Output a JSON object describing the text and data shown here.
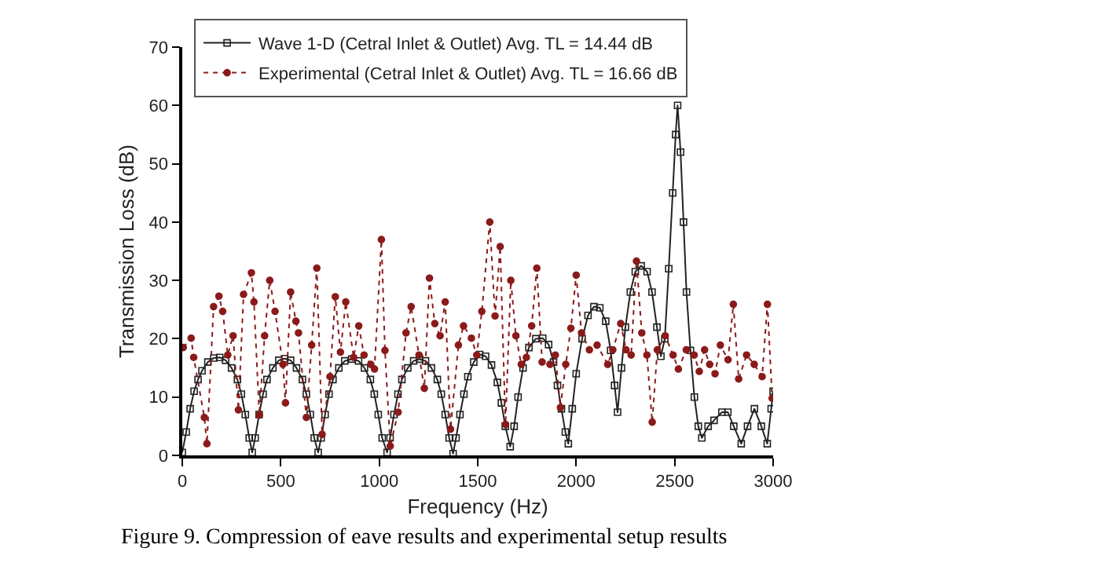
{
  "chart_data": {
    "type": "line",
    "xlabel": "Frequency (Hz)",
    "ylabel": "Transmission Loss (dB)",
    "xlim": [
      0,
      3000
    ],
    "xticks": [
      0,
      500,
      1000,
      1500,
      2000,
      2500,
      3000
    ],
    "ylim": [
      0,
      70
    ],
    "yticks": [
      0,
      10,
      20,
      30,
      40,
      50,
      60,
      70
    ],
    "grid": false,
    "legend": "top left",
    "annotations": [
      "Figure 9. Compression of eave results and experimental setup results"
    ],
    "series": [
      {
        "name": "Wave 1-D (Cetral Inlet & Outlet) Avg. TL = 14.44 dB",
        "color": "#222222",
        "marker": "square",
        "line_style": "solid",
        "x": [
          0,
          20,
          40,
          60,
          80,
          100,
          130,
          160,
          190,
          220,
          250,
          280,
          300,
          320,
          340,
          355,
          370,
          390,
          410,
          430,
          460,
          490,
          520,
          550,
          580,
          610,
          630,
          650,
          670,
          690,
          705,
          725,
          745,
          765,
          795,
          825,
          860,
          895,
          925,
          955,
          975,
          995,
          1015,
          1040,
          1055,
          1075,
          1095,
          1115,
          1145,
          1175,
          1205,
          1235,
          1265,
          1295,
          1315,
          1335,
          1355,
          1375,
          1390,
          1410,
          1430,
          1450,
          1480,
          1510,
          1540,
          1570,
          1600,
          1620,
          1640,
          1665,
          1685,
          1705,
          1730,
          1760,
          1795,
          1830,
          1860,
          1885,
          1905,
          1925,
          1945,
          1960,
          1980,
          2000,
          2030,
          2060,
          2090,
          2120,
          2150,
          2175,
          2195,
          2210,
          2230,
          2250,
          2275,
          2300,
          2330,
          2360,
          2385,
          2410,
          2430,
          2450,
          2470,
          2490,
          2505,
          2515,
          2530,
          2545,
          2560,
          2580,
          2600,
          2620,
          2638,
          2670,
          2700,
          2740,
          2770,
          2800,
          2838,
          2870,
          2905,
          2940,
          2970,
          2990,
          3000
        ],
        "values": [
          0.5,
          4,
          8,
          11,
          13,
          14.5,
          16,
          16.7,
          16.8,
          16.3,
          15,
          13,
          10.5,
          7,
          3,
          0.5,
          3,
          7,
          10.5,
          13,
          15,
          16.3,
          16.6,
          16.3,
          15,
          13,
          10.5,
          7,
          3,
          0.5,
          3,
          7,
          10.5,
          13,
          15,
          16.2,
          16.5,
          16.2,
          15,
          13,
          10.5,
          7,
          3,
          0.5,
          3,
          7,
          10.5,
          13,
          15,
          16.2,
          16.5,
          16.2,
          15,
          13,
          10.5,
          7,
          3,
          0.3,
          3,
          7,
          10.5,
          13.5,
          16,
          17.3,
          17,
          15.5,
          12.5,
          9,
          5,
          1.5,
          5,
          10,
          15,
          18.5,
          20,
          20.1,
          19,
          16,
          12,
          8,
          4,
          2,
          8,
          14,
          20,
          24,
          25.5,
          25.3,
          23,
          18,
          12,
          7.4,
          15,
          22,
          28,
          31.5,
          32.5,
          31.5,
          28,
          22,
          17,
          20,
          32,
          45,
          55,
          60,
          52,
          40,
          28,
          18,
          10,
          5,
          3,
          5,
          6,
          7.4,
          7.4,
          5,
          2,
          5,
          8,
          5,
          2,
          8,
          11
        ]
      },
      {
        "name": "Experimental (Cetral Inlet & Outlet) Avg. TL = 16.66 dB",
        "color": "#8b1a1a",
        "marker": "circle",
        "line_style": "dotted",
        "x": [
          5,
          45,
          58,
          112,
          125,
          159,
          186,
          205,
          231,
          258,
          285,
          311,
          351,
          364,
          391,
          418,
          444,
          471,
          511,
          524,
          550,
          577,
          590,
          630,
          657,
          683,
          710,
          750,
          777,
          803,
          830,
          870,
          896,
          923,
          957,
          976,
          1011,
          1029,
          1056,
          1096,
          1136,
          1162,
          1202,
          1229,
          1255,
          1282,
          1309,
          1335,
          1362,
          1402,
          1428,
          1468,
          1495,
          1521,
          1561,
          1588,
          1614,
          1641,
          1668,
          1694,
          1721,
          1747,
          1774,
          1800,
          1827,
          1867,
          1894,
          1920,
          1947,
          1973,
          2000,
          2027,
          2067,
          2106,
          2160,
          2186,
          2226,
          2253,
          2279,
          2306,
          2333,
          2359,
          2386,
          2412,
          2452,
          2492,
          2519,
          2559,
          2599,
          2625,
          2652,
          2678,
          2705,
          2732,
          2771,
          2798,
          2825,
          2865,
          2904,
          2944,
          2971,
          2995
        ],
        "values": [
          18.5,
          20.1,
          16.8,
          6.5,
          2,
          25.5,
          27.3,
          24.7,
          17.2,
          20.5,
          7.8,
          27.6,
          31.3,
          26.3,
          6.9,
          20.5,
          30,
          24.7,
          15.6,
          9,
          28,
          23,
          21,
          6.5,
          18.9,
          32.1,
          3.6,
          13.5,
          27.2,
          17.7,
          26.3,
          16.8,
          22.2,
          17.2,
          15.6,
          14.8,
          37,
          18,
          1.6,
          7.4,
          21,
          25.5,
          17.2,
          11.5,
          30.4,
          22.6,
          20.5,
          26.3,
          4.5,
          18.9,
          22.2,
          20.1,
          17.2,
          24.7,
          40,
          23.9,
          35.8,
          5.3,
          30,
          20.5,
          15.6,
          16.8,
          22.2,
          32.1,
          16,
          15.6,
          17.2,
          8.2,
          15.6,
          21.8,
          30.9,
          21,
          18.1,
          18.9,
          15.6,
          18.1,
          22.6,
          18.1,
          17.2,
          33.3,
          21,
          17.2,
          5.7,
          18.1,
          20.5,
          17.2,
          14.8,
          18.1,
          17.2,
          14.4,
          18.1,
          15.6,
          14,
          18.9,
          16.4,
          25.9,
          13.1,
          17.2,
          15.6,
          13.5,
          25.9,
          9.8
        ]
      }
    ]
  }
}
